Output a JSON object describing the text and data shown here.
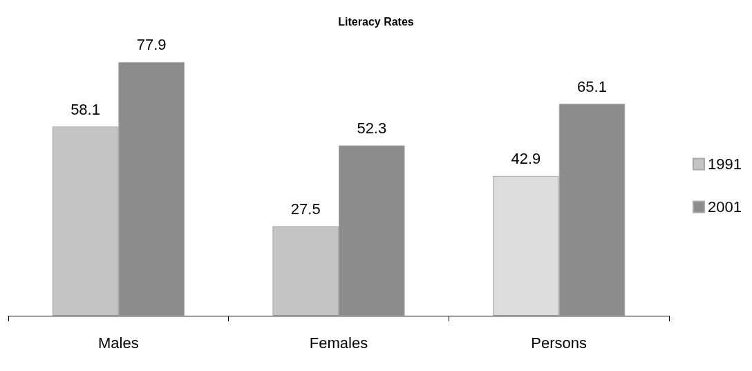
{
  "chart_data": {
    "type": "bar",
    "title": "Literacy Rates",
    "categories": [
      "Males",
      "Females",
      "Persons"
    ],
    "series": [
      {
        "name": "1991",
        "color": "#c4c4c4",
        "colors": [
          "#c4c4c4",
          "#c4c4c4",
          "#dcdcdc"
        ],
        "values": [
          58.1,
          27.5,
          42.9
        ]
      },
      {
        "name": "2001",
        "color": "#8c8c8c",
        "values": [
          77.9,
          52.3,
          65.1
        ]
      }
    ],
    "data_labels": true,
    "legend": "right",
    "tick_labels": "x"
  }
}
